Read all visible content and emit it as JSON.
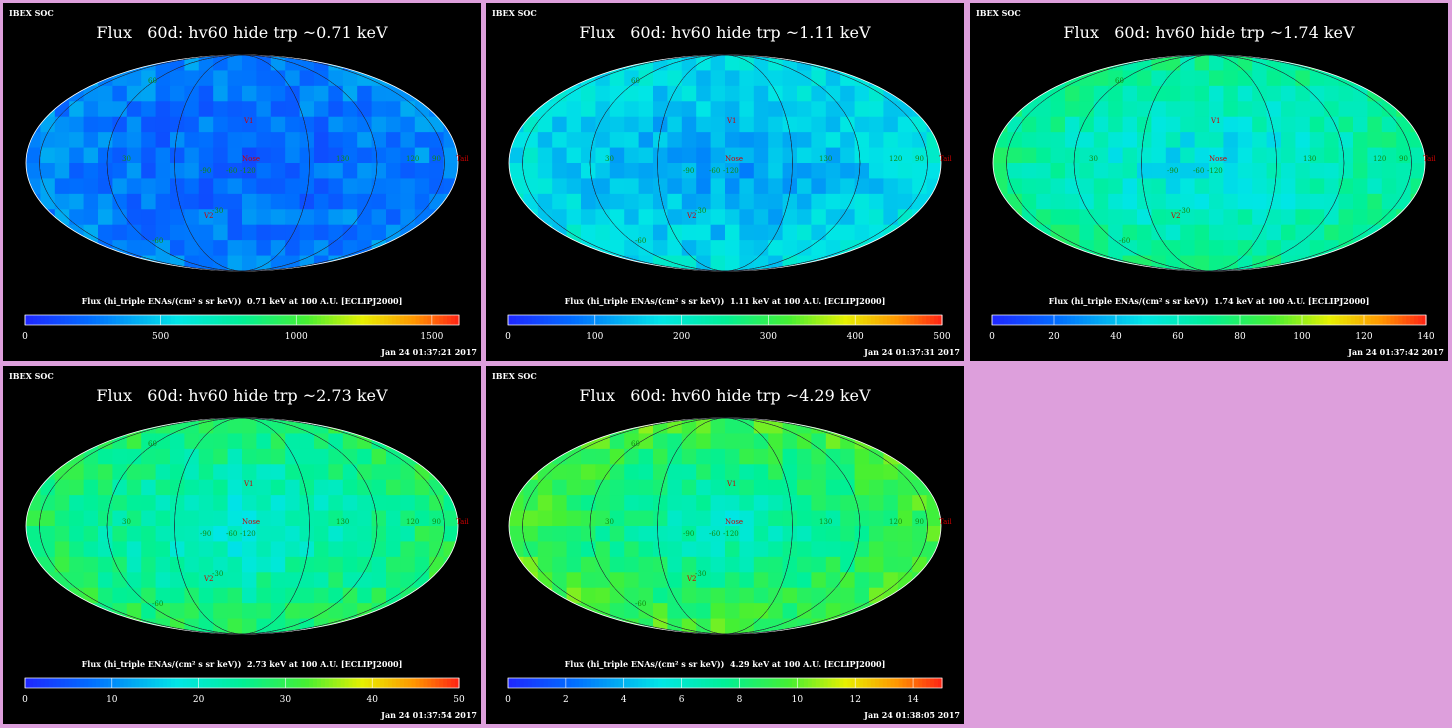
{
  "background_color": "#dd9fdc",
  "panels": [
    {
      "header": "IBEX SOC",
      "title": "Flux   60d: hv60 hide trp ~0.71 keV",
      "cbar_label": "Flux (hi_triple ENAs/(cm² s sr keV))  0.71 keV at 100 A.U. [ECLIPJ2000]",
      "ticks": [
        "0",
        "500",
        "1000",
        "1500"
      ],
      "tick_values": [
        0,
        500,
        1000,
        1500
      ],
      "vmax": 1600,
      "timestamp": "Jan 24 01:37:21 2017",
      "level": 0.12
    },
    {
      "header": "IBEX SOC",
      "title": "Flux   60d: hv60 hide trp ~1.11 keV",
      "cbar_label": "Flux (hi_triple ENAs/(cm² s sr keV))  1.11 keV at 100 A.U. [ECLIPJ2000]",
      "ticks": [
        "0",
        "100",
        "200",
        "300",
        "400",
        "500"
      ],
      "tick_values": [
        0,
        100,
        200,
        300,
        400,
        500
      ],
      "vmax": 500,
      "timestamp": "Jan 24 01:37:31 2017",
      "level": 0.22
    },
    {
      "header": "IBEX SOC",
      "title": "Flux   60d: hv60 hide trp ~1.74 keV",
      "cbar_label": "Flux (hi_triple ENAs/(cm² s sr keV))  1.74 keV at 100 A.U. [ECLIPJ2000]",
      "ticks": [
        "0",
        "20",
        "40",
        "60",
        "80",
        "100",
        "120",
        "140"
      ],
      "tick_values": [
        0,
        20,
        40,
        60,
        80,
        100,
        120,
        140
      ],
      "vmax": 140,
      "timestamp": "Jan 24 01:37:42 2017",
      "level": 0.32
    },
    {
      "header": "IBEX SOC",
      "title": "Flux   60d: hv60 hide trp ~2.73 keV",
      "cbar_label": "Flux (hi_triple ENAs/(cm² s sr keV))  2.73 keV at 100 A.U. [ECLIPJ2000]",
      "ticks": [
        "0",
        "10",
        "20",
        "30",
        "40",
        "50"
      ],
      "tick_values": [
        0,
        10,
        20,
        30,
        40,
        50
      ],
      "vmax": 50,
      "timestamp": "Jan 24 01:37:54 2017",
      "level": 0.36
    },
    {
      "header": "IBEX SOC",
      "title": "Flux   60d: hv60 hide trp ~4.29 keV",
      "cbar_label": "Flux (hi_triple ENAs/(cm² s sr keV))  4.29 keV at 100 A.U. [ECLIPJ2000]",
      "ticks": [
        "0",
        "2",
        "4",
        "6",
        "8",
        "10",
        "12",
        "14"
      ],
      "tick_values": [
        0,
        2,
        4,
        6,
        8,
        10,
        12,
        14
      ],
      "vmax": 15,
      "timestamp": "Jan 24 01:38:05 2017",
      "level": 0.4
    }
  ],
  "map_labels": {
    "v1": "V1",
    "v2": "V2",
    "nose": "Nose",
    "tail": "Tail",
    "grid": [
      "60",
      "30",
      "-60",
      "-90",
      "-120",
      "130",
      "120",
      "90",
      "-30",
      "-60"
    ]
  },
  "chart_data": [
    {
      "type": "heatmap",
      "title": "Flux   60d: hv60 hide trp ~0.71 keV",
      "colorbar_range": [
        0,
        1600
      ]
    },
    {
      "type": "heatmap",
      "title": "Flux   60d: hv60 hide trp ~1.11 keV",
      "colorbar_range": [
        0,
        500
      ]
    },
    {
      "type": "heatmap",
      "title": "Flux   60d: hv60 hide trp ~1.74 keV",
      "colorbar_range": [
        0,
        140
      ]
    },
    {
      "type": "heatmap",
      "title": "Flux   60d: hv60 hide trp ~2.73 keV",
      "colorbar_range": [
        0,
        50
      ]
    },
    {
      "type": "heatmap",
      "title": "Flux   60d: hv60 hide trp ~4.29 keV",
      "colorbar_range": [
        0,
        15
      ]
    }
  ]
}
